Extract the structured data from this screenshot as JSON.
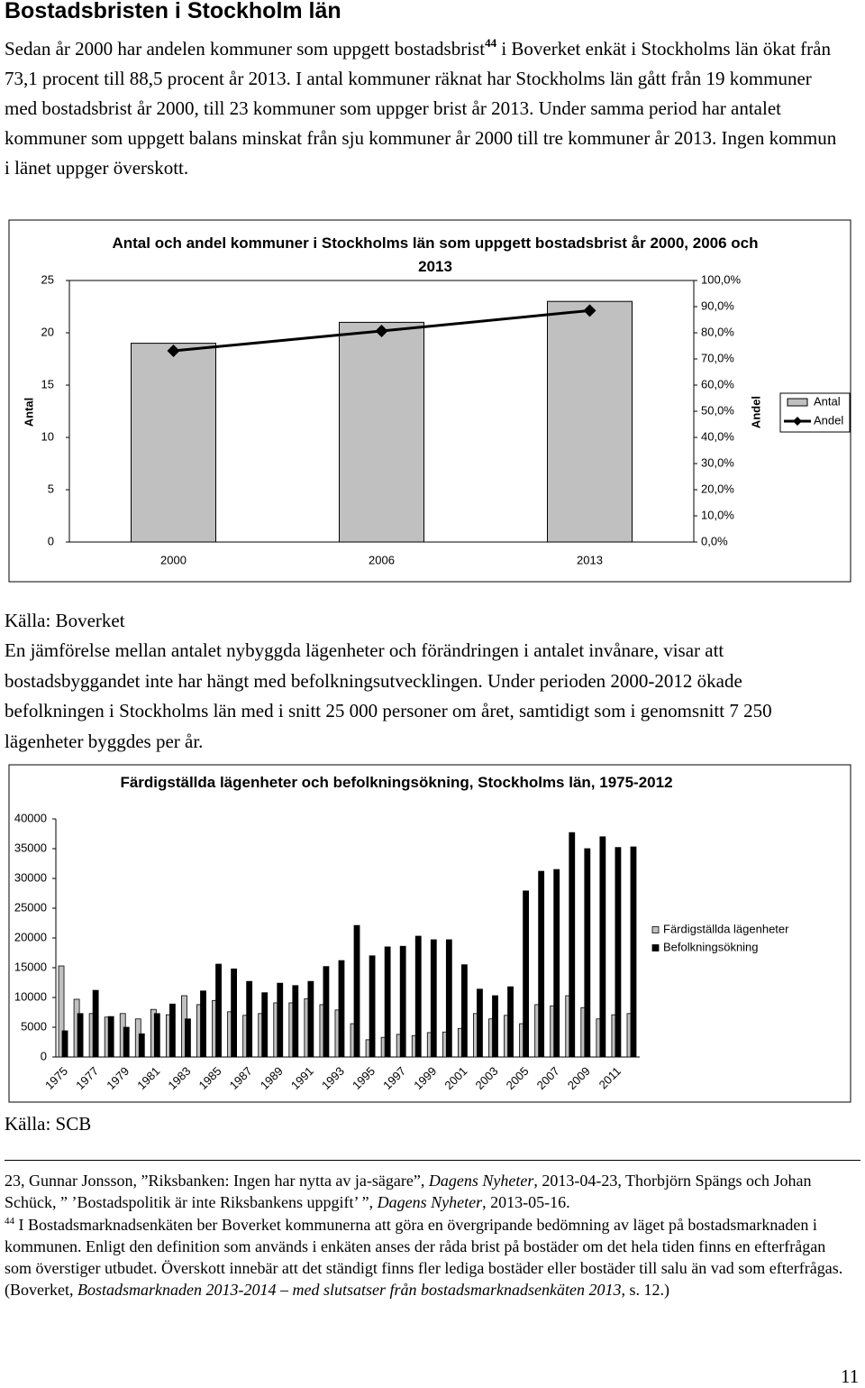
{
  "heading": "Bostadsbristen i Stockholm län",
  "paragraph_1": {
    "before": "Sedan år 2000 har andelen kommuner som uppgett bostadsbrist",
    "footnote_ref": "44",
    "after": " i Boverket enkät i Stockholms län ökat från 73,1 procent till 88,5 procent år 2013. I antal kommuner räknat har Stockholms län gått från 19 kommuner med bostadsbrist år 2000, till 23 kommuner som uppger brist år 2013. Under samma period har antalet kommuner som uppgett balans minskat från sju kommuner år 2000 till tre kommuner år 2013. Ingen kommun i länet uppger överskott."
  },
  "source_1": "Källa: Boverket",
  "paragraph_2": "En jämförelse mellan antalet nybyggda lägenheter och förändringen i antalet invånare, visar att bostadsbyggandet inte har hängt med befolkningsutvecklingen. Under perioden 2000-2012 ökade befolkningen i Stockholms län med i snitt 25 000 personer om året, samtidigt som i genomsnitt 7 250 lägenheter byggdes per år.",
  "source_2": "Källa: SCB",
  "footnotes": [
    {
      "runs": [
        "23, Gunnar Jonsson, ”Riksbanken: Ingen har nytta av ja-sägare”, ",
        {
          "text": "Dagens Nyheter",
          "style": "italic"
        },
        ", 2013-04-23, Thorbjörn Spängs och Johan Schück, ” ’Bostadspolitik är inte Riksbankens uppgift’ ”, ",
        {
          "text": "Dagens Nyheter",
          "style": "italic"
        },
        ", 2013-05-16."
      ]
    },
    {
      "marker": "44",
      "runs": [
        " I Bostadsmarknadsenkäten ber Boverket kommunerna att göra en övergripande bedömning av läget på bostadsmarknaden i kommunen. Enligt den definition som används i enkäten anses der råda brist på bostäder om det hela tiden finns en efterfrågan som överstiger utbudet. Överskott innebär att det ständigt finns fler lediga bostäder eller bostäder till salu än vad som efterfrågas. (Boverket, ",
        {
          "text": "Bostadsmarknaden 2013-2014 – med slutsatser från bostadsmarknadsenkäten 2013",
          "style": "italic"
        },
        ", s. 12.)"
      ]
    }
  ],
  "page_number": "11",
  "chart_data": [
    {
      "type": "bar-line",
      "title": "Antal och andel kommuner i Stockholms län som uppgett bostadsbrist år 2000, 2006 och 2013",
      "ylabel": "Antal",
      "y2label": "Andel",
      "categories": [
        "2000",
        "2006",
        "2013"
      ],
      "series": [
        {
          "name": "Antal",
          "type": "bar",
          "color": "#c0c0c0",
          "values": [
            19,
            21,
            23
          ]
        },
        {
          "name": "Andel",
          "type": "line",
          "axis": "y2",
          "color": "#000000",
          "values": [
            73.1,
            80.7,
            88.5
          ]
        }
      ],
      "ylim": [
        0,
        25
      ],
      "yticks": [
        0,
        5,
        10,
        15,
        20,
        25
      ],
      "y2lim": [
        0,
        100
      ],
      "y2ticks": [
        {
          "value": 0,
          "label": "0,0%"
        },
        {
          "value": 10,
          "label": "10,0%"
        },
        {
          "value": 20,
          "label": "20,0%"
        },
        {
          "value": 30,
          "label": "30,0%"
        },
        {
          "value": 40,
          "label": "40,0%"
        },
        {
          "value": 50,
          "label": "50,0%"
        },
        {
          "value": 60,
          "label": "60,0%"
        },
        {
          "value": 70,
          "label": "70,0%"
        },
        {
          "value": 80,
          "label": "80,0%"
        },
        {
          "value": 90,
          "label": "90,0%"
        },
        {
          "value": 100,
          "label": "100,0%"
        }
      ],
      "legend": "right"
    },
    {
      "type": "bar",
      "title": "Färdigställda lägenheter och befolkningsökning, Stockholms län, 1975-2012",
      "categories": [
        "1975",
        null,
        "1977",
        null,
        "1979",
        null,
        "1981",
        null,
        "1983",
        null,
        "1985",
        null,
        "1987",
        null,
        "1989",
        null,
        "1991",
        null,
        "1993",
        null,
        "1995",
        null,
        "1997",
        null,
        "1999",
        null,
        "2001",
        null,
        "2003",
        null,
        "2005",
        null,
        "2007",
        null,
        "2009",
        null,
        "2011",
        null
      ],
      "series": [
        {
          "name": "Färdigställda lägenheter",
          "color": "#c0c0c0",
          "values": [
            15300,
            9700,
            7300,
            6700,
            7300,
            6400,
            8000,
            7100,
            10300,
            8800,
            9500,
            7600,
            7000,
            7300,
            9100,
            9100,
            9800,
            8800,
            7900,
            5600,
            2900,
            3300,
            3800,
            3600,
            4100,
            4200,
            4800,
            7300,
            6400,
            7000,
            5600,
            8800,
            8600,
            10300,
            8300,
            6400,
            7100,
            7300
          ]
        },
        {
          "name": "Befolkningsökning",
          "color": "#000000",
          "values": [
            4400,
            7300,
            11200,
            6800,
            5000,
            3900,
            7300,
            8900,
            6400,
            11100,
            15600,
            14800,
            12700,
            10800,
            12400,
            12000,
            12700,
            15200,
            16200,
            22100,
            17000,
            18500,
            18600,
            20300,
            19700,
            19700,
            15500,
            11400,
            10300,
            11800,
            27900,
            31200,
            31500,
            37700,
            35000,
            37000,
            35200,
            35300
          ]
        }
      ],
      "ylim": [
        0,
        40000
      ],
      "yticks": [
        0,
        5000,
        10000,
        15000,
        20000,
        25000,
        30000,
        35000,
        40000
      ],
      "legend": "right"
    }
  ]
}
